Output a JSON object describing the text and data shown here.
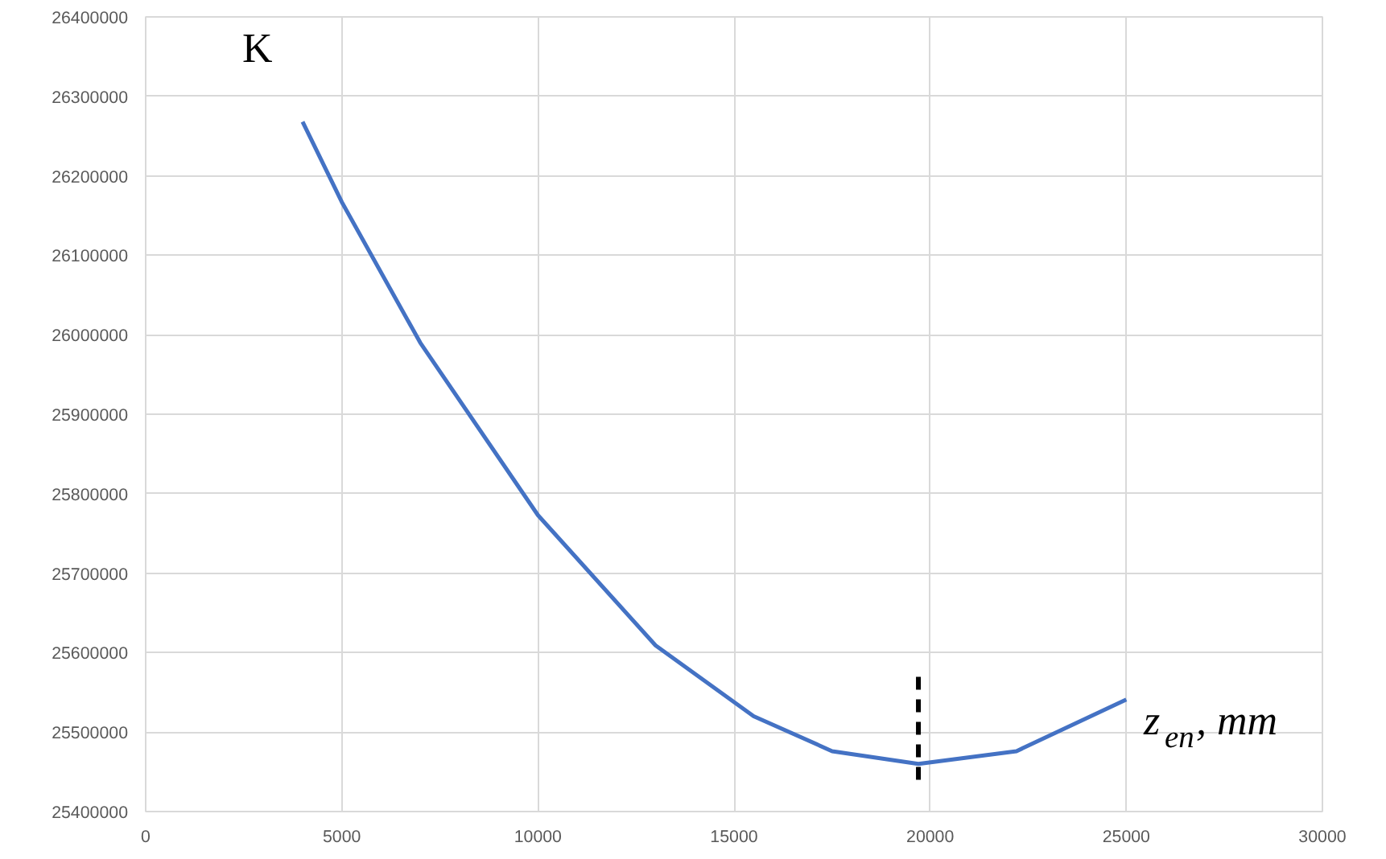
{
  "chart_data": {
    "type": "line",
    "xlabel": "z$_{en}$, mm",
    "ylabel": "K",
    "xlim": [
      0,
      30000
    ],
    "ylim": [
      25400000,
      26400000
    ],
    "xticks": [
      0,
      5000,
      10000,
      15000,
      20000,
      25000,
      30000
    ],
    "yticks": [
      25400000,
      25500000,
      25600000,
      25700000,
      25800000,
      25900000,
      26000000,
      26100000,
      26200000,
      26300000,
      26400000
    ],
    "grid": true,
    "marker": "none",
    "series": [
      {
        "color": "#4472c4",
        "x": [
          4000,
          5000,
          7000,
          10000,
          13000,
          15500,
          17500,
          19700,
          22200,
          25000
        ],
        "values": [
          26268000,
          26167000,
          25990000,
          25773000,
          25609000,
          25520000,
          25476000,
          25460000,
          25476000,
          25541000
        ]
      },
      {
        "color": "#000000",
        "line_style": "dashed",
        "x": [
          19700,
          19700
        ],
        "values": [
          25440000,
          25575000
        ]
      }
    ]
  }
}
